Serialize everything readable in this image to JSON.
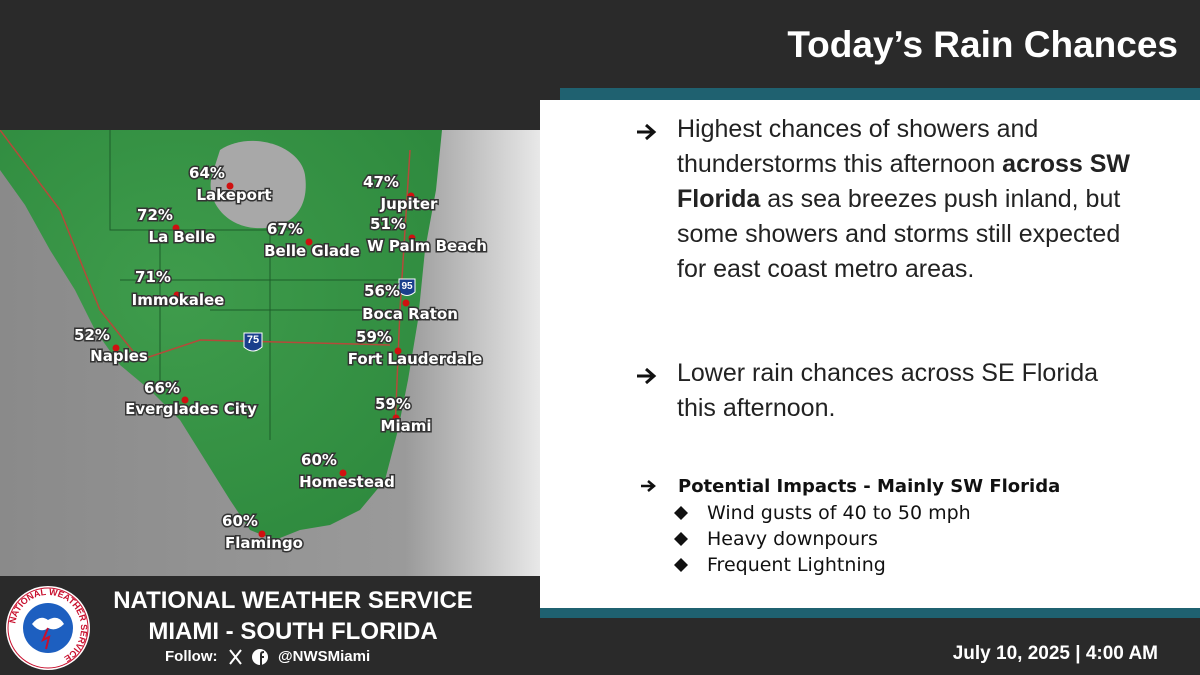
{
  "header": {
    "title": "Today’s Rain Chances"
  },
  "map": {
    "interstates": [
      "75",
      "95"
    ],
    "cities": [
      {
        "name": "Lakeport",
        "chance": "64%"
      },
      {
        "name": "La Belle",
        "chance": "72%"
      },
      {
        "name": "Belle Glade",
        "chance": "67%"
      },
      {
        "name": "Jupiter",
        "chance": "47%"
      },
      {
        "name": "W Palm Beach",
        "chance": "51%"
      },
      {
        "name": "Immokalee",
        "chance": "71%"
      },
      {
        "name": "Boca Raton",
        "chance": "56%"
      },
      {
        "name": "Naples",
        "chance": "52%"
      },
      {
        "name": "Fort Lauderdale",
        "chance": "59%"
      },
      {
        "name": "Everglades City",
        "chance": "66%"
      },
      {
        "name": "Miami",
        "chance": "59%"
      },
      {
        "name": "Homestead",
        "chance": "60%"
      },
      {
        "name": "Flamingo",
        "chance": "60%"
      }
    ]
  },
  "bullets": [
    {
      "before": "Highest chances of showers and thunderstorms this afternoon ",
      "bold": "across SW Florida",
      "after": " as sea breezes push inland, but some showers and storms still expected for east coast metro areas."
    },
    {
      "before": "Lower rain chances across SE Florida this afternoon."
    }
  ],
  "impacts": {
    "title": "Potential Impacts - Mainly SW Florida",
    "items": [
      "Wind gusts of 40 to 50 mph",
      "Heavy downpours",
      "Frequent Lightning"
    ]
  },
  "footer": {
    "logo_text": "NATIONAL WEATHER SERVICE",
    "office_line1": "NATIONAL WEATHER SERVICE",
    "office_line2": "MIAMI - SOUTH FLORIDA",
    "follow": "Follow:",
    "handle": "@NWSMiami",
    "date": "July 10, 2025 | 4:00 AM"
  }
}
